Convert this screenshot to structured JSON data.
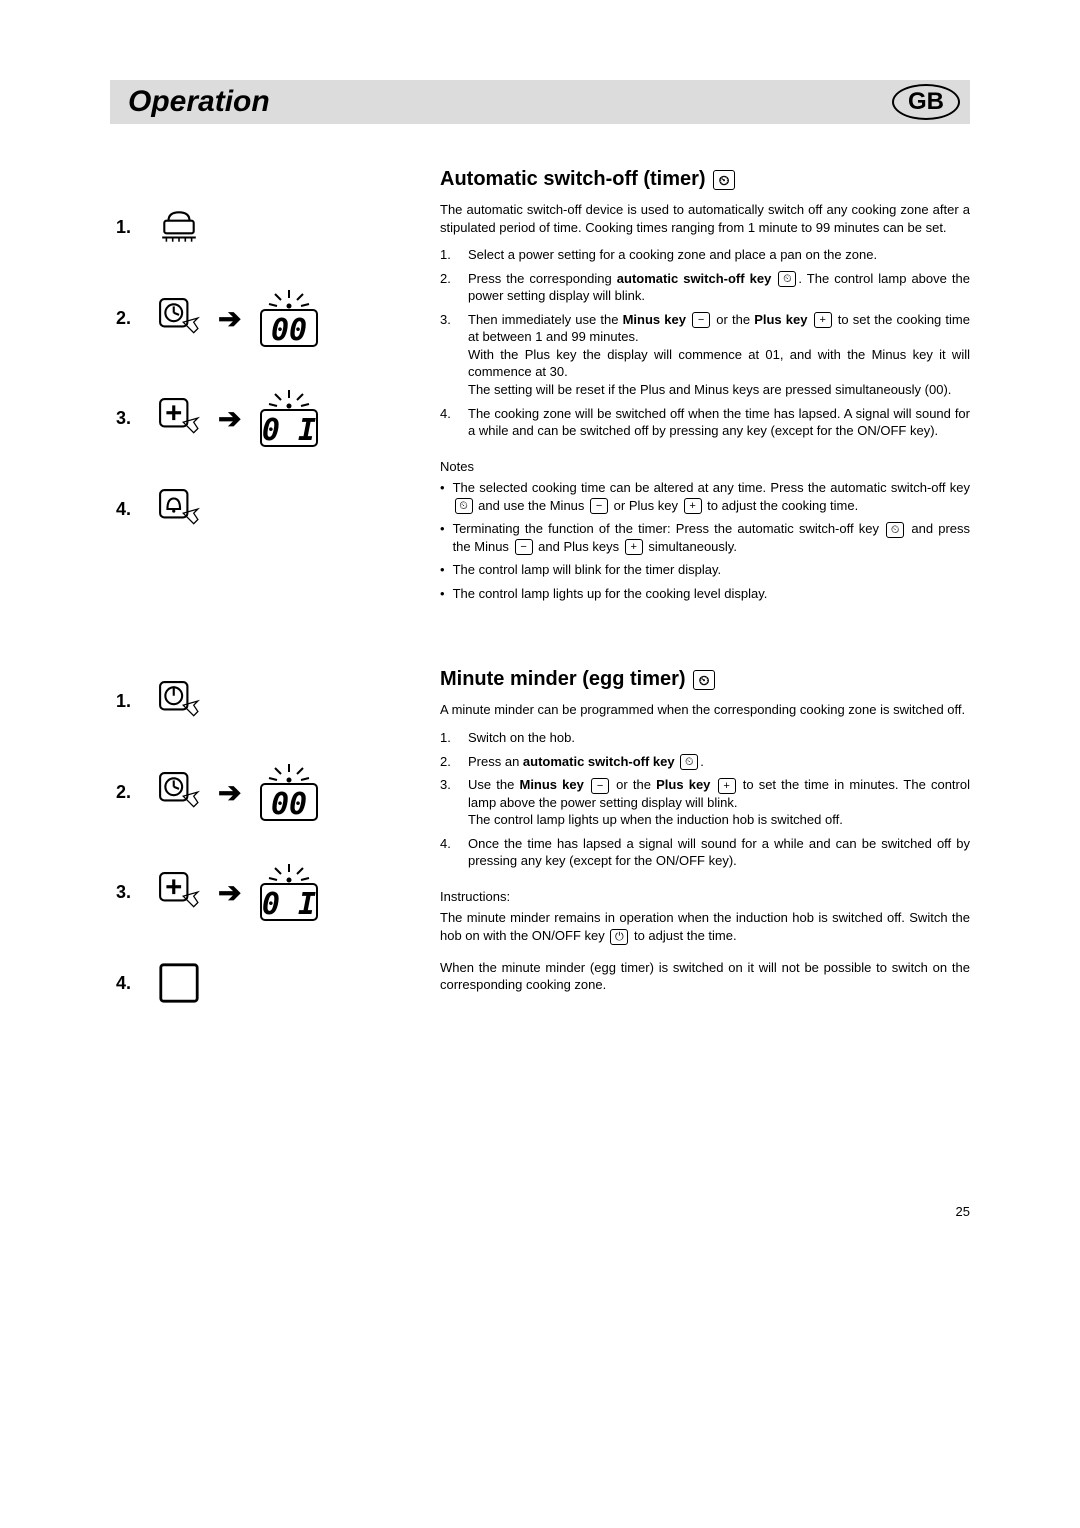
{
  "header": {
    "title": "Operation",
    "badge": "GB"
  },
  "page_number": "25",
  "icons": {
    "timer": "⏲",
    "plus": "+",
    "minus": "−",
    "power": "⏻"
  },
  "left_section_a": {
    "rows": [
      {
        "num": "1.",
        "icon": "pan",
        "display": null
      },
      {
        "num": "2.",
        "icon": "timer-press",
        "display": "00"
      },
      {
        "num": "3.",
        "icon": "plus-press",
        "display": "01"
      },
      {
        "num": "4.",
        "icon": "bell-press",
        "display": null
      }
    ]
  },
  "left_section_b": {
    "rows": [
      {
        "num": "1.",
        "icon": "power-press",
        "display": null
      },
      {
        "num": "2.",
        "icon": "timer-press",
        "display": "00"
      },
      {
        "num": "3.",
        "icon": "plus-press",
        "display": "01"
      },
      {
        "num": "4.",
        "icon": "blank-box",
        "display": null
      }
    ]
  },
  "section_a": {
    "title": "Automatic switch-off (timer) ",
    "intro": "The automatic switch-off device is used to automatically switch off any cooking zone after a stipulated period of time. Cooking times ranging from 1 minute to 99 minutes can be set.",
    "steps": [
      {
        "n": "1.",
        "text": "Select a power setting for a cooking zone and place a pan on the zone."
      },
      {
        "n": "2.",
        "html": "Press the corresponding <b>automatic switch-off key</b> <span class='inline-icon'>⏲</span>. The control lamp above the power setting display will blink."
      },
      {
        "n": "3.",
        "html": "Then immediately use the <b>Minus key</b> <span class='inline-icon'>−</span> or the <b>Plus key</b> <span class='inline-icon'>+</span> to set the cooking time at between 1 and 99 minutes.<br>With the Plus key the display will commence at 01, and with the Minus key it will commence at 30.<br>The setting will be reset if the Plus and Minus keys are pressed simultaneously (00)."
      },
      {
        "n": "4.",
        "text": "The cooking zone will be switched off when the time has lapsed. A signal will sound for a while and can be switched off by pressing any key (except for the ON/OFF key)."
      }
    ],
    "notes_label": "Notes",
    "notes": [
      {
        "html": "The selected cooking time can be altered at any time. Press the automatic switch-off key <span class='inline-icon'>⏲</span> and use the Minus <span class='inline-icon'>−</span> or Plus key <span class='inline-icon'>+</span> to adjust the cooking time."
      },
      {
        "html": "Terminating the function of the timer: Press the automatic switch-off key <span class='inline-icon'>⏲</span> and press the Minus <span class='inline-icon'>−</span> and Plus keys <span class='inline-icon'>+</span> simultaneously."
      },
      {
        "text": "The control lamp will blink for the timer display."
      },
      {
        "text": "The control lamp lights up for the cooking level display."
      }
    ]
  },
  "section_b": {
    "title": "Minute minder (egg timer) ",
    "intro": "A minute minder can be programmed when the corresponding cooking zone is switched off.",
    "steps": [
      {
        "n": "1.",
        "text": "Switch on the hob."
      },
      {
        "n": "2.",
        "html": "Press an <b>automatic switch-off key</b> <span class='inline-icon'>⏲</span>."
      },
      {
        "n": "3.",
        "html": "Use the <b>Minus key</b> <span class='inline-icon'>−</span> or the <b>Plus key</b> <span class='inline-icon'>+</span> to set the time in minutes. The control lamp above the power setting display will blink.<br>The control lamp lights up when the induction hob is switched off."
      },
      {
        "n": "4.",
        "text": "Once the time has lapsed a signal will sound for a while and can be switched off by pressing any key (except for the ON/OFF key)."
      }
    ],
    "instr_label": "Instructions:",
    "instr1": "The minute minder remains in operation when the induction hob is switched off. Switch the hob on with the ON/OFF key <span class='inline-icon'>⏻</span> to adjust the time.",
    "instr2": "When the minute minder (egg timer) is switched on it will not be possible to switch on the corresponding cooking zone."
  }
}
